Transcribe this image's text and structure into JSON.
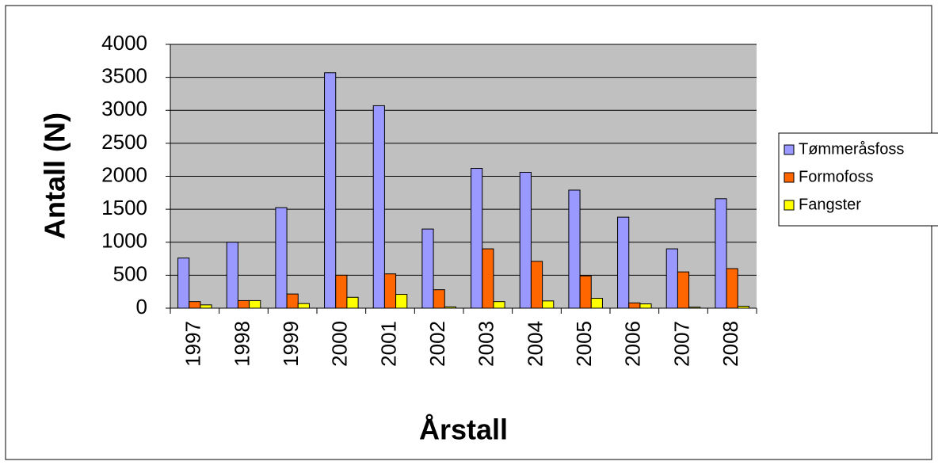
{
  "chart_data": {
    "type": "bar",
    "x_label": "Årstall",
    "y_label": "Antall (N)",
    "categories": [
      "1997",
      "1998",
      "1999",
      "2000",
      "2001",
      "2002",
      "2003",
      "2004",
      "2005",
      "2006",
      "2007",
      "2008"
    ],
    "series": [
      {
        "name": "Tømmeråsfoss",
        "color": "#9999ff",
        "values": [
          760,
          1000,
          1525,
          3570,
          3070,
          1200,
          2120,
          2060,
          1790,
          1380,
          900,
          1660
        ]
      },
      {
        "name": "Formofoss",
        "color": "#ff6600",
        "values": [
          100,
          115,
          215,
          500,
          520,
          280,
          900,
          710,
          490,
          80,
          550,
          600
        ]
      },
      {
        "name": "Fangster",
        "color": "#ffff00",
        "values": [
          50,
          115,
          70,
          165,
          210,
          20,
          100,
          110,
          150,
          65,
          15,
          30
        ]
      }
    ],
    "ylim": [
      0,
      4000
    ],
    "yticks": [
      0,
      500,
      1000,
      1500,
      2000,
      2500,
      3000,
      3500,
      4000
    ],
    "grid": true,
    "legend": "right"
  }
}
